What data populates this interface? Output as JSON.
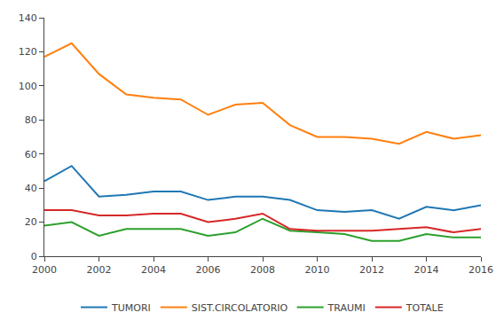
{
  "chart_data": {
    "type": "line",
    "x": [
      2000,
      2001,
      2002,
      2003,
      2004,
      2005,
      2006,
      2007,
      2008,
      2009,
      2010,
      2011,
      2012,
      2013,
      2014,
      2015,
      2016
    ],
    "series": [
      {
        "name": "TUMORI",
        "values": [
          44,
          53,
          35,
          36,
          38,
          38,
          33,
          35,
          35,
          33,
          27,
          26,
          27,
          22,
          29,
          27,
          30
        ]
      },
      {
        "name": "SIST.CIRCOLATORIO",
        "values": [
          117,
          125,
          107,
          95,
          93,
          92,
          83,
          89,
          90,
          77,
          70,
          70,
          69,
          66,
          73,
          69,
          71
        ]
      },
      {
        "name": "TRAUMI",
        "values": [
          18,
          20,
          12,
          16,
          16,
          16,
          12,
          14,
          22,
          15,
          14,
          13,
          9,
          9,
          13,
          11,
          11
        ]
      },
      {
        "name": "TOTALE",
        "values": [
          27,
          27,
          24,
          24,
          25,
          25,
          20,
          22,
          25,
          16,
          15,
          15,
          15,
          16,
          17,
          14,
          16
        ]
      }
    ],
    "xlim": [
      2000,
      2016
    ],
    "xticks": [
      2000,
      2002,
      2004,
      2006,
      2008,
      2010,
      2012,
      2014,
      2016
    ],
    "ylim": [
      0,
      140
    ],
    "yticks": [
      0,
      20,
      40,
      60,
      80,
      100,
      120,
      140
    ],
    "grid": false,
    "legend": "bottom"
  }
}
